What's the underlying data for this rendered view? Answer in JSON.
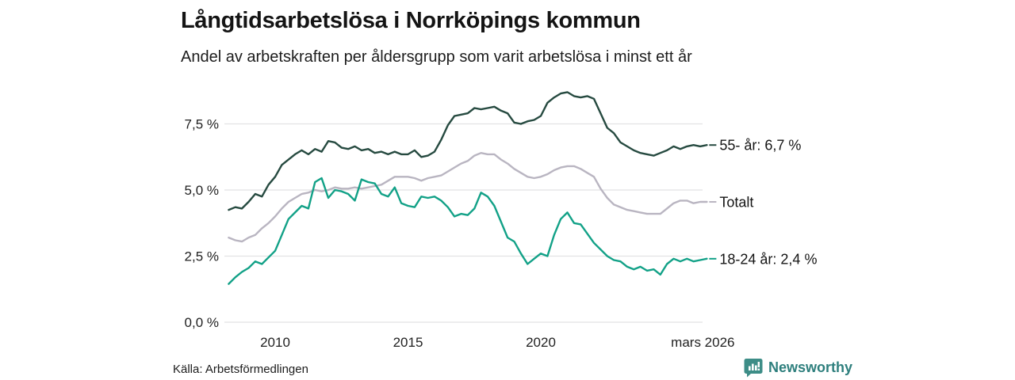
{
  "title": "Långtidsarbetslösa i Norrköpings kommun",
  "subtitle": "Andel av arbetskraften per åldersgrupp som varit arbetslösa i minst ett år",
  "source": "Källa: Arbetsförmedlingen",
  "branding": {
    "name": "Newsworthy",
    "logo_icon": "bar-chart-speech-bubble-icon",
    "text_color": "#2e7f7d",
    "icon_color": "#3d8d87"
  },
  "chart_data": {
    "type": "line",
    "title": "Långtidsarbetslösa i Norrköpings kommun",
    "subtitle": "Andel av arbetskraften per åldersgrupp som varit arbetslösa i minst ett år",
    "unit": "%",
    "grid": "horizontal",
    "legend_position": "right-end-labels",
    "colors": {
      "gridline": "#e2e2e4"
    },
    "y_axis": {
      "tick_labels": [
        "7,5 %",
        "5,0 %",
        "2,5 %",
        "0,0 %"
      ],
      "tick_values": [
        7.5,
        5.0,
        2.5,
        0.0
      ],
      "ylim": [
        0,
        9
      ]
    },
    "x_axis": {
      "tick_labels": [
        "2010",
        "2015",
        "2020",
        "mars 2026"
      ],
      "tick_positions": [
        2010,
        2015,
        2020,
        2026.1
      ],
      "domain": [
        2008.25,
        2026.25
      ]
    },
    "x": [
      2008.25,
      2008.5,
      2008.75,
      2009.0,
      2009.25,
      2009.5,
      2009.75,
      2010.0,
      2010.25,
      2010.5,
      2010.75,
      2011.0,
      2011.25,
      2011.5,
      2011.75,
      2012.0,
      2012.25,
      2012.5,
      2012.75,
      2013.0,
      2013.25,
      2013.5,
      2013.75,
      2014.0,
      2014.25,
      2014.5,
      2014.75,
      2015.0,
      2015.25,
      2015.5,
      2015.75,
      2016.0,
      2016.25,
      2016.5,
      2016.75,
      2017.0,
      2017.25,
      2017.5,
      2017.75,
      2018.0,
      2018.25,
      2018.5,
      2018.75,
      2019.0,
      2019.25,
      2019.5,
      2019.75,
      2020.0,
      2020.25,
      2020.5,
      2020.75,
      2021.0,
      2021.25,
      2021.5,
      2021.75,
      2022.0,
      2022.25,
      2022.5,
      2022.75,
      2023.0,
      2023.25,
      2023.5,
      2023.75,
      2024.0,
      2024.25,
      2024.5,
      2024.75,
      2025.0,
      2025.25,
      2025.5,
      2025.75,
      2026.0,
      2026.25
    ],
    "series": [
      {
        "name": "55- år",
        "end_label": "55- år: 6,7 %",
        "last_value": 6.7,
        "color": "#264a40",
        "values": [
          4.25,
          4.35,
          4.3,
          4.55,
          4.85,
          4.75,
          5.2,
          5.5,
          5.95,
          6.15,
          6.35,
          6.5,
          6.35,
          6.55,
          6.45,
          6.85,
          6.8,
          6.6,
          6.55,
          6.65,
          6.5,
          6.55,
          6.4,
          6.45,
          6.35,
          6.45,
          6.35,
          6.35,
          6.5,
          6.25,
          6.3,
          6.45,
          6.9,
          7.45,
          7.8,
          7.85,
          7.9,
          8.1,
          8.05,
          8.1,
          8.15,
          8.0,
          7.9,
          7.55,
          7.5,
          7.6,
          7.65,
          7.8,
          8.3,
          8.5,
          8.65,
          8.7,
          8.55,
          8.5,
          8.55,
          8.45,
          7.9,
          7.35,
          7.15,
          6.8,
          6.65,
          6.5,
          6.4,
          6.35,
          6.3,
          6.4,
          6.5,
          6.65,
          6.55,
          6.65,
          6.7,
          6.65,
          6.7
        ]
      },
      {
        "name": "Totalt",
        "end_label": "Totalt",
        "last_value": 4.55,
        "color": "#b9b5c1",
        "values": [
          3.2,
          3.1,
          3.05,
          3.2,
          3.3,
          3.55,
          3.75,
          4.0,
          4.3,
          4.55,
          4.7,
          4.85,
          4.9,
          5.0,
          4.95,
          5.0,
          5.1,
          5.05,
          5.05,
          5.1,
          5.05,
          5.1,
          5.15,
          5.2,
          5.35,
          5.5,
          5.5,
          5.5,
          5.45,
          5.35,
          5.45,
          5.5,
          5.55,
          5.7,
          5.85,
          6.0,
          6.1,
          6.3,
          6.4,
          6.35,
          6.35,
          6.15,
          6.0,
          5.8,
          5.65,
          5.5,
          5.45,
          5.5,
          5.6,
          5.75,
          5.85,
          5.9,
          5.9,
          5.8,
          5.65,
          5.5,
          5.05,
          4.7,
          4.45,
          4.35,
          4.25,
          4.2,
          4.15,
          4.1,
          4.1,
          4.1,
          4.3,
          4.5,
          4.6,
          4.6,
          4.5,
          4.55,
          4.55
        ]
      },
      {
        "name": "18-24 år",
        "end_label": "18-24 år: 2,4 %",
        "last_value": 2.4,
        "color": "#12a187",
        "values": [
          1.45,
          1.7,
          1.9,
          2.05,
          2.3,
          2.2,
          2.45,
          2.7,
          3.3,
          3.9,
          4.15,
          4.4,
          4.3,
          5.3,
          5.45,
          4.7,
          5.0,
          4.95,
          4.85,
          4.6,
          5.4,
          5.3,
          5.25,
          4.85,
          4.75,
          5.1,
          4.5,
          4.4,
          4.35,
          4.75,
          4.7,
          4.75,
          4.6,
          4.35,
          4.0,
          4.1,
          4.05,
          4.3,
          4.9,
          4.75,
          4.4,
          3.8,
          3.2,
          3.05,
          2.6,
          2.2,
          2.4,
          2.6,
          2.5,
          3.3,
          3.9,
          4.15,
          3.75,
          3.7,
          3.35,
          3.0,
          2.75,
          2.5,
          2.35,
          2.3,
          2.1,
          2.0,
          2.1,
          1.95,
          2.0,
          1.8,
          2.2,
          2.4,
          2.3,
          2.4,
          2.3,
          2.35,
          2.4
        ]
      }
    ]
  }
}
